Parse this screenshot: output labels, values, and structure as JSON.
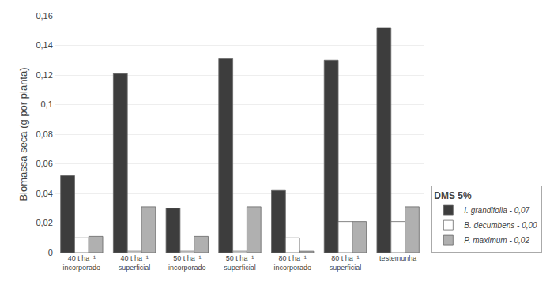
{
  "chart_data": {
    "type": "bar",
    "categories": [
      "40 t ha⁻¹\nincorporado",
      "40 t ha⁻¹\nsuperficial",
      "50 t ha⁻¹\nincorporado",
      "50 t ha⁻¹\nsuperficial",
      "80 t ha⁻¹\nincorporado",
      "80 t ha⁻¹\nsuperficial",
      "testemunha"
    ],
    "series": [
      {
        "name": "I. grandifolia - 0,07",
        "color": "#3d3d3d",
        "values": [
          0.052,
          0.121,
          0.03,
          0.131,
          0.042,
          0.13,
          0.152
        ]
      },
      {
        "name": "B. decumbens - 0,00",
        "color": "#ffffff",
        "values": [
          0.01,
          0.001,
          0.001,
          0.001,
          0.01,
          0.021,
          0.021
        ]
      },
      {
        "name": "P. maximum - 0,02",
        "color": "#b0b0b0",
        "values": [
          0.011,
          0.031,
          0.011,
          0.031,
          0.001,
          0.021,
          0.031
        ]
      }
    ],
    "ylabel": "Biomassa seca (g por planta)",
    "legend_title": "DMS 5%",
    "ylim": [
      0,
      0.16
    ],
    "yticks": [
      0,
      {
        "value": 0.02,
        "label": "0,02"
      },
      {
        "value": 0.04,
        "label": "0,04"
      },
      {
        "value": 0.06,
        "label": "0,06"
      },
      {
        "value": 0.08,
        "label": "0,08"
      },
      {
        "value": 0.1,
        "label": "0,1"
      },
      {
        "value": 0.12,
        "label": "0,12"
      },
      {
        "value": 0.14,
        "label": "0,14"
      },
      {
        "value": 0.16,
        "label": "0,16"
      }
    ],
    "grid": true,
    "legend": "lower right"
  }
}
